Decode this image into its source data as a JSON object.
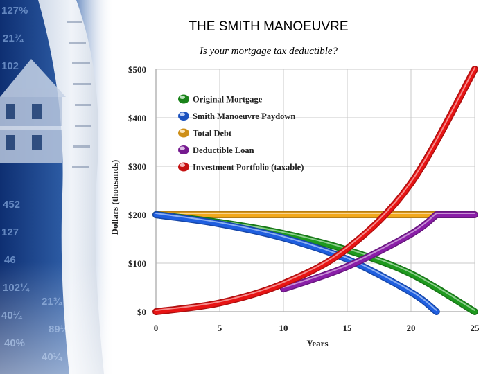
{
  "slide": {
    "title": "THE SMITH MANOEUVRE",
    "subtitle": "Is your mortgage tax deductible?"
  },
  "decoration": {
    "background_image": "house and financial newspaper collage",
    "accent_color": "#1b4e98"
  },
  "chart_data": {
    "type": "line",
    "title": "",
    "xlabel": "Years",
    "ylabel": "Dollars (thousands)",
    "xlim": [
      0,
      25
    ],
    "ylim": [
      0,
      500
    ],
    "x_ticks": [
      "0",
      "5",
      "10",
      "15",
      "20",
      "25"
    ],
    "y_ticks": [
      "$0",
      "$100",
      "$200",
      "$300",
      "$400",
      "$500"
    ],
    "grid": true,
    "legend_position": "top-left",
    "series": [
      {
        "name": "Original Mortgage",
        "color": "#1e9a1e",
        "x": [
          0,
          5,
          10,
          15,
          20,
          25
        ],
        "y": [
          200,
          184,
          161,
          127,
          78,
          0
        ]
      },
      {
        "name": "Smith Manoeuvre Paydown",
        "color": "#1f5fe0",
        "x": [
          0,
          5,
          10,
          15,
          20,
          22
        ],
        "y": [
          200,
          181,
          152,
          108,
          40,
          0
        ]
      },
      {
        "name": "Total Debt",
        "color": "#f2a81c",
        "x": [
          0,
          5,
          10,
          15,
          20,
          22,
          25
        ],
        "y": [
          200,
          200,
          200,
          200,
          200,
          200,
          200
        ]
      },
      {
        "name": "Deductible Loan",
        "color": "#8a1ea8",
        "x": [
          10,
          15,
          20,
          22,
          25
        ],
        "y": [
          47,
          93,
          160,
          200,
          200
        ]
      },
      {
        "name": "Investment Portfolio (taxable)",
        "color": "#e81414",
        "x": [
          0,
          5,
          10,
          15,
          20,
          25
        ],
        "y": [
          0,
          18,
          58,
          130,
          265,
          500
        ]
      }
    ]
  }
}
